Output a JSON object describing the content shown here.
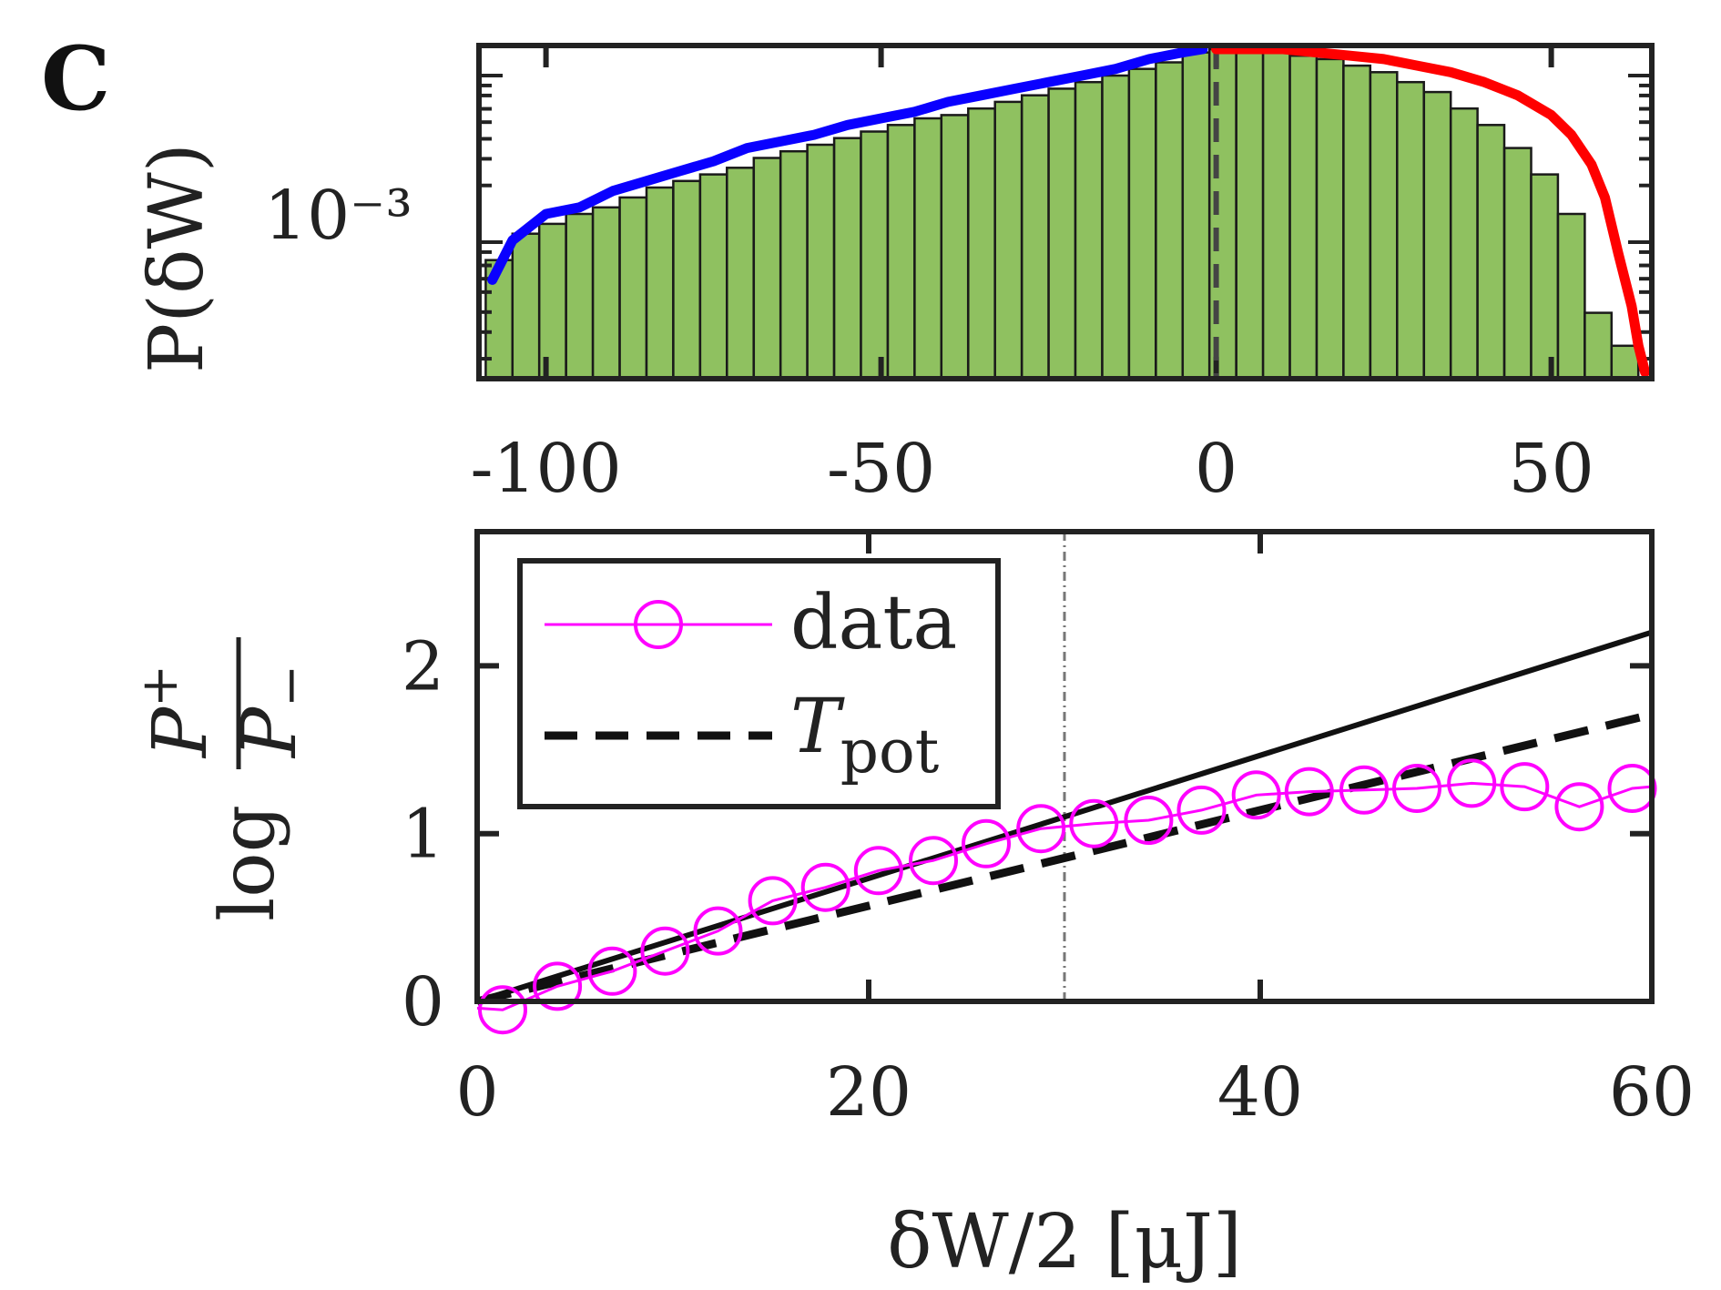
{
  "panel_label": "C",
  "chart_data": [
    {
      "type": "bar",
      "name": "histogram",
      "title": "",
      "ylabel": "P(δW)",
      "yscale": "log",
      "y_tick_labels": [
        "10⁻³"
      ],
      "xlim": [
        -110,
        65
      ],
      "x_tick_values": [
        -100,
        -50,
        0,
        50
      ],
      "x_tick_labels": [
        "-100",
        "-50",
        "0",
        "50"
      ],
      "bar_color": "#8fc160",
      "bins": [
        -107,
        -103,
        -99,
        -95,
        -91,
        -87,
        -83,
        -79,
        -75,
        -71,
        -67,
        -63,
        -59,
        -55,
        -51,
        -47,
        -43,
        -39,
        -35,
        -31,
        -27,
        -23,
        -19,
        -15,
        -11,
        -7,
        -3,
        1,
        5,
        9,
        13,
        17,
        21,
        25,
        29,
        33,
        37,
        41,
        45,
        49,
        53,
        57,
        61
      ],
      "bar_heights_rel": [
        0.36,
        0.44,
        0.47,
        0.5,
        0.52,
        0.55,
        0.58,
        0.6,
        0.62,
        0.64,
        0.67,
        0.69,
        0.71,
        0.73,
        0.75,
        0.77,
        0.79,
        0.8,
        0.82,
        0.84,
        0.86,
        0.88,
        0.9,
        0.92,
        0.94,
        0.96,
        0.99,
        1.0,
        0.99,
        0.99,
        0.98,
        0.97,
        0.95,
        0.93,
        0.9,
        0.87,
        0.82,
        0.77,
        0.7,
        0.62,
        0.5,
        0.2,
        0.1
      ],
      "series": [
        {
          "name": "negative fit",
          "color": "#0a00ff",
          "x": [
            -108,
            -105,
            -100,
            -95,
            -90,
            -85,
            -80,
            -75,
            -70,
            -65,
            -60,
            -55,
            -50,
            -45,
            -40,
            -35,
            -30,
            -25,
            -20,
            -15,
            -10,
            -5,
            -2
          ],
          "y_rel": [
            0.3,
            0.42,
            0.5,
            0.52,
            0.57,
            0.6,
            0.63,
            0.66,
            0.7,
            0.72,
            0.74,
            0.77,
            0.79,
            0.81,
            0.84,
            0.86,
            0.88,
            0.9,
            0.92,
            0.94,
            0.97,
            0.99,
            1.0
          ]
        },
        {
          "name": "positive fit",
          "color": "#ff0000",
          "x": [
            0,
            5,
            10,
            15,
            20,
            25,
            30,
            35,
            40,
            45,
            50,
            53,
            56,
            58,
            60,
            62,
            63,
            64
          ],
          "y_rel": [
            1.0,
            1.0,
            1.0,
            0.99,
            0.98,
            0.97,
            0.95,
            0.93,
            0.9,
            0.86,
            0.8,
            0.74,
            0.65,
            0.55,
            0.38,
            0.22,
            0.1,
            0.02
          ]
        }
      ]
    },
    {
      "type": "line",
      "name": "log ratio",
      "xlabel": "δW/2  [μJ]",
      "ylabel": "log P+ / P−",
      "ylabel_parts": {
        "log": "log",
        "num": "P",
        "num_sup": "+",
        "den": "P",
        "den_sub": "−"
      },
      "xlim": [
        0,
        60
      ],
      "ylim": [
        0,
        2.8
      ],
      "x_ticks": [
        0,
        20,
        40,
        60
      ],
      "x_tick_labels": [
        "0",
        "20",
        "40",
        "60"
      ],
      "y_ticks": [
        0,
        1,
        2
      ],
      "y_tick_labels": [
        "0",
        "1",
        "2"
      ],
      "vline_x": 30,
      "legend": {
        "placement": "top-left",
        "entries": [
          {
            "label": "data",
            "style": "magenta-circle-line"
          },
          {
            "label": "T",
            "sub": "pot",
            "style": "black-dashed"
          }
        ]
      },
      "series": [
        {
          "name": "data",
          "color": "#ff00ff",
          "marker": "circle",
          "x": [
            1.3,
            4.1,
            6.9,
            9.6,
            12.3,
            15.1,
            17.8,
            20.5,
            23.3,
            26.0,
            28.8,
            31.5,
            34.3,
            37.0,
            39.8,
            42.5,
            45.3,
            48.0,
            50.8,
            53.5,
            56.3,
            59.0
          ],
          "y": [
            -0.05,
            0.09,
            0.18,
            0.3,
            0.42,
            0.6,
            0.68,
            0.78,
            0.84,
            0.94,
            1.03,
            1.06,
            1.08,
            1.14,
            1.23,
            1.25,
            1.26,
            1.27,
            1.3,
            1.28,
            1.16,
            1.27
          ]
        },
        {
          "name": "linear",
          "color": "#111111",
          "style": "solid",
          "x": [
            0,
            60
          ],
          "y": [
            0,
            2.2
          ]
        },
        {
          "name": "T_pot",
          "color": "#111111",
          "style": "dashed",
          "x": [
            0,
            60
          ],
          "y": [
            0,
            1.71
          ]
        }
      ]
    }
  ]
}
